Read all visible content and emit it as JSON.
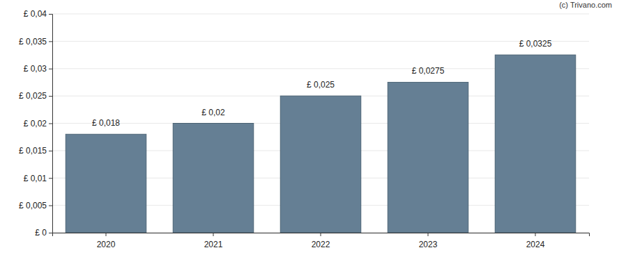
{
  "chart_data": {
    "type": "bar",
    "categories": [
      "2020",
      "2021",
      "2022",
      "2023",
      "2024"
    ],
    "values": [
      0.018,
      0.02,
      0.025,
      0.0275,
      0.0325
    ],
    "value_labels": [
      "£ 0,018",
      "£ 0,02",
      "£ 0,025",
      "£ 0,0275",
      "£ 0,0325"
    ],
    "color": "#657f94",
    "ylim": [
      0,
      0.04
    ],
    "yticks": [
      {
        "value": 0,
        "label": "£ 0"
      },
      {
        "value": 0.005,
        "label": "£ 0,005"
      },
      {
        "value": 0.01,
        "label": "£ 0,01"
      },
      {
        "value": 0.015,
        "label": "£ 0,015"
      },
      {
        "value": 0.02,
        "label": "£ 0,02"
      },
      {
        "value": 0.025,
        "label": "£ 0,025"
      },
      {
        "value": 0.03,
        "label": "£ 0,03"
      },
      {
        "value": 0.035,
        "label": "£ 0,035"
      },
      {
        "value": 0.04,
        "label": "£ 0,04"
      }
    ],
    "grid": true,
    "data_labels": true,
    "annotations": [
      "(c) Trivano.com"
    ]
  }
}
